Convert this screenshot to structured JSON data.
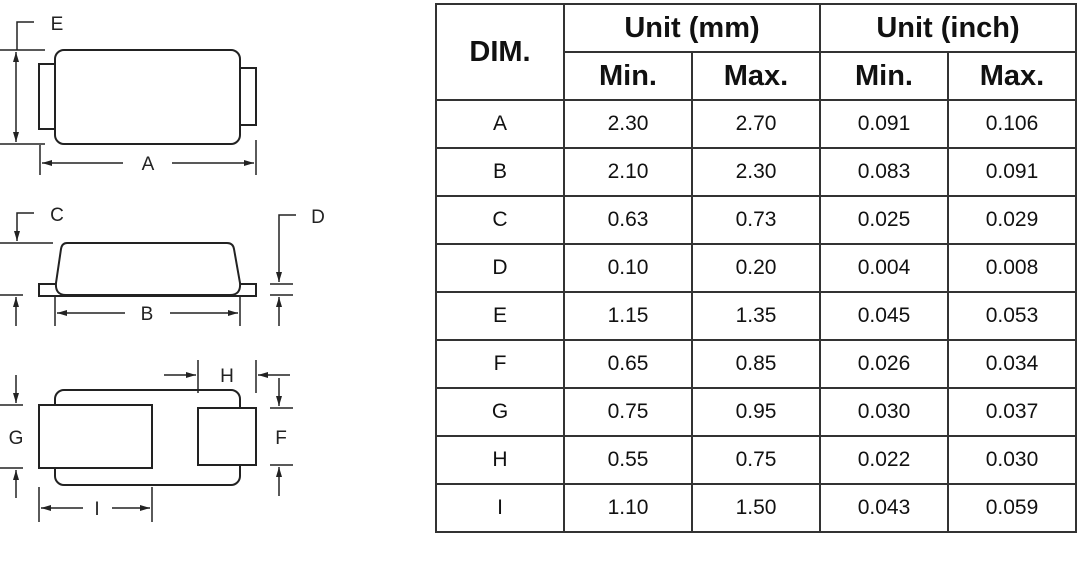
{
  "drawing": {
    "labels": {
      "A": "A",
      "B": "B",
      "C": "C",
      "D": "D",
      "E": "E",
      "F": "F",
      "G": "G",
      "H": "H",
      "I": "I"
    }
  },
  "table": {
    "dim_header": "DIM.",
    "group_headers": [
      "Unit (mm)",
      "Unit (inch)"
    ],
    "sub_headers": [
      "Min.",
      "Max.",
      "Min.",
      "Max."
    ],
    "rows": [
      [
        "A",
        "2.30",
        "2.70",
        "0.091",
        "0.106"
      ],
      [
        "B",
        "2.10",
        "2.30",
        "0.083",
        "0.091"
      ],
      [
        "C",
        "0.63",
        "0.73",
        "0.025",
        "0.029"
      ],
      [
        "D",
        "0.10",
        "0.20",
        "0.004",
        "0.008"
      ],
      [
        "E",
        "1.15",
        "1.35",
        "0.045",
        "0.053"
      ],
      [
        "F",
        "0.65",
        "0.85",
        "0.026",
        "0.034"
      ],
      [
        "G",
        "0.75",
        "0.95",
        "0.030",
        "0.037"
      ],
      [
        "H",
        "0.55",
        "0.75",
        "0.022",
        "0.030"
      ],
      [
        "I",
        "1.10",
        "1.50",
        "0.043",
        "0.059"
      ]
    ]
  }
}
